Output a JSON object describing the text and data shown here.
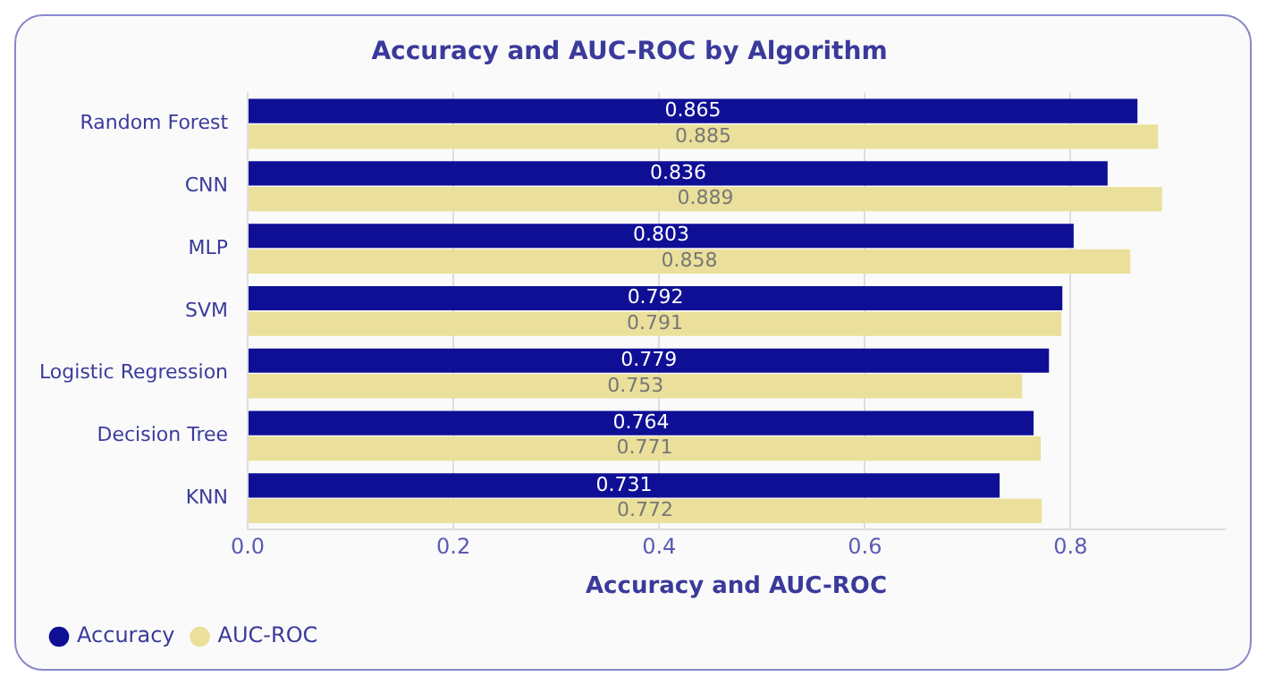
{
  "chart_data": {
    "type": "bar",
    "orientation": "horizontal",
    "title": "Accuracy and AUC-ROC by Algorithm",
    "xlabel": "Accuracy and AUC-ROC",
    "categories": [
      "Random Forest",
      "CNN",
      "MLP",
      "SVM",
      "Logistic Regression",
      "Decision Tree",
      "KNN"
    ],
    "series": [
      {
        "name": "Accuracy",
        "color": "#0f0f96",
        "values": [
          0.865,
          0.836,
          0.803,
          0.792,
          0.779,
          0.764,
          0.731
        ]
      },
      {
        "name": "AUC-ROC",
        "color": "#ebe09b",
        "values": [
          0.885,
          0.889,
          0.858,
          0.791,
          0.753,
          0.771,
          0.772
        ]
      }
    ],
    "xlim": [
      0,
      0.95
    ],
    "xticks": [
      {
        "value": 0,
        "label": "0.0"
      },
      0.2,
      0.4,
      0.6,
      0.8
    ],
    "grid": "x",
    "legend": "bottom left",
    "data_labels": true
  }
}
